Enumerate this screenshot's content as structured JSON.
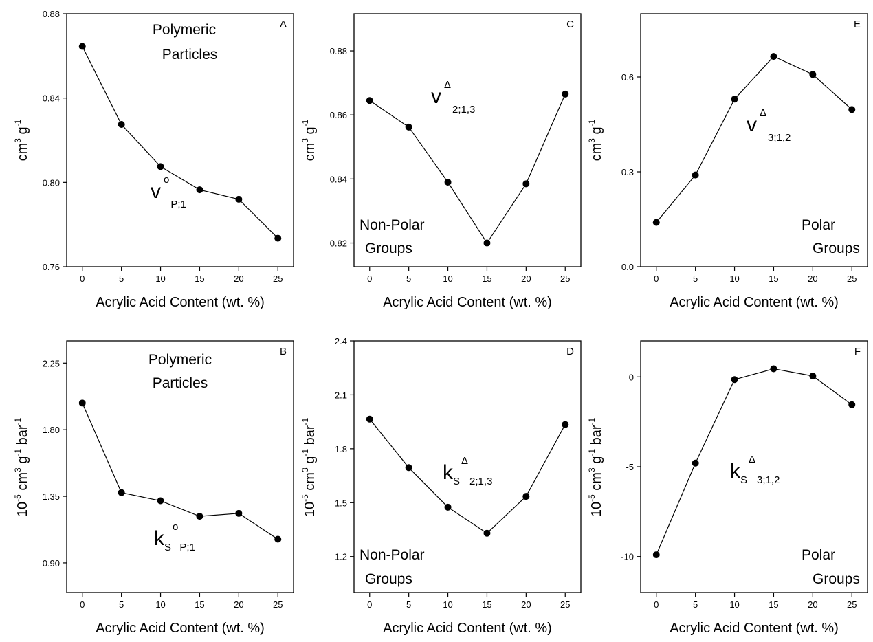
{
  "figure": {
    "colors": {
      "line": "#000000",
      "marker": "#000000",
      "background": "#ffffff"
    },
    "marker": "filled-circle"
  },
  "chart_data": [
    {
      "panel": "A",
      "type": "line",
      "x": [
        0,
        5,
        10,
        15,
        20,
        25
      ],
      "values": [
        0.8645,
        0.8275,
        0.8075,
        0.7965,
        0.792,
        0.7735
      ],
      "xlabel": "Acrylic Acid Content  (wt. %)",
      "xlim": [
        -2,
        27
      ],
      "ylim": [
        0.76,
        0.88
      ],
      "xticks": [
        0,
        5,
        10,
        15,
        20,
        25
      ],
      "yticks": [
        0.76,
        0.8,
        0.84,
        0.88
      ],
      "ytick_labels": [
        "0.76",
        "0.80",
        "0.84",
        "0.88"
      ],
      "ylabel": {
        "unit1": "cm",
        "exp1": "3",
        "unit2": "g",
        "exp2": "-1"
      },
      "annotations": [
        "Polymeric",
        "Particles"
      ],
      "symbol": {
        "base": "v",
        "sup": "o",
        "sub": "P;1"
      }
    },
    {
      "panel": "B",
      "type": "line",
      "x": [
        0,
        5,
        10,
        15,
        20,
        25
      ],
      "values": [
        1.98,
        1.375,
        1.32,
        1.215,
        1.235,
        1.06
      ],
      "xlabel": "Acrylic Acid Content  (wt. %)",
      "xlim": [
        -2,
        27
      ],
      "ylim": [
        0.7,
        2.4
      ],
      "xticks": [
        0,
        5,
        10,
        15,
        20,
        25
      ],
      "yticks": [
        0.9,
        1.35,
        1.8,
        2.25
      ],
      "ytick_labels": [
        "0.90",
        "1.35",
        "1.80",
        "2.25"
      ],
      "ylabel": {
        "prefix": "10",
        "prefix_exp": "-5",
        "unit1": "cm",
        "exp1": "3",
        "unit2": "g",
        "exp2": "-1",
        "unit3": "bar",
        "exp3": "-1"
      },
      "annotations": [
        "Polymeric",
        "Particles"
      ],
      "symbol": {
        "base": "k",
        "base_sub": "S",
        "sup": "o",
        "sub": "P;1"
      }
    },
    {
      "panel": "C",
      "type": "line",
      "x": [
        0,
        5,
        10,
        15,
        20,
        25
      ],
      "values": [
        0.8645,
        0.8562,
        0.839,
        0.82,
        0.8385,
        0.8665
      ],
      "xlabel": "Acrylic Acid Content  (wt. %)",
      "xlim": [
        -2,
        27
      ],
      "ylim": [
        0.8126,
        0.8916
      ],
      "xticks": [
        0,
        5,
        10,
        15,
        20,
        25
      ],
      "yticks": [
        0.82,
        0.84,
        0.86,
        0.88
      ],
      "ytick_labels": [
        "0.82",
        "0.84",
        "0.86",
        "0.88"
      ],
      "ylabel": {
        "unit1": "cm",
        "exp1": "3",
        "unit2": "g",
        "exp2": "-1"
      },
      "annotations": [
        "Non-Polar",
        "Groups"
      ],
      "symbol": {
        "base": "v",
        "sup": "Δ",
        "sub": "2;1,3"
      }
    },
    {
      "panel": "D",
      "type": "line",
      "x": [
        0,
        5,
        10,
        15,
        20,
        25
      ],
      "values": [
        1.965,
        1.695,
        1.475,
        1.33,
        1.535,
        1.935
      ],
      "xlabel": "Acrylic Acid Content  (wt. %)",
      "xlim": [
        -2,
        27
      ],
      "ylim": [
        1.0,
        2.4
      ],
      "xticks": [
        0,
        5,
        10,
        15,
        20,
        25
      ],
      "yticks": [
        1.2,
        1.5,
        1.8,
        2.1,
        2.4
      ],
      "ytick_labels": [
        "1.2",
        "1.5",
        "1.8",
        "2.1",
        "2.4"
      ],
      "ylabel": {
        "prefix": "10",
        "prefix_exp": "-5",
        "unit1": "cm",
        "exp1": "3",
        "unit2": "g",
        "exp2": "-1",
        "unit3": "bar",
        "exp3": "-1"
      },
      "annotations": [
        "Non-Polar",
        "Groups"
      ],
      "symbol": {
        "base": "k",
        "base_sub": "S",
        "sup": "Δ",
        "sub": "2;1,3"
      }
    },
    {
      "panel": "E",
      "type": "line",
      "x": [
        0,
        5,
        10,
        15,
        20,
        25
      ],
      "values": [
        0.14,
        0.29,
        0.53,
        0.665,
        0.608,
        0.497
      ],
      "xlabel": "Acrylic Acid Content  (wt. %)",
      "xlim": [
        -2,
        27
      ],
      "ylim": [
        0.0,
        0.8
      ],
      "xticks": [
        0,
        5,
        10,
        15,
        20,
        25
      ],
      "yticks": [
        0.0,
        0.3,
        0.6
      ],
      "ytick_labels": [
        "0.0",
        "0.3",
        "0.6"
      ],
      "ylabel": {
        "unit1": "cm",
        "exp1": "3",
        "unit2": "g",
        "exp2": "-1"
      },
      "annotations": [
        "Polar",
        "Groups"
      ],
      "symbol": {
        "base": "v",
        "sup": "Δ",
        "sub": "3;1,2"
      }
    },
    {
      "panel": "F",
      "type": "line",
      "x": [
        0,
        5,
        10,
        15,
        20,
        25
      ],
      "values": [
        -9.9,
        -4.8,
        -0.15,
        0.45,
        0.05,
        -1.55
      ],
      "xlabel": "Acrylic Acid Content  (wt. %)",
      "xlim": [
        -2,
        27
      ],
      "ylim": [
        -12,
        2
      ],
      "xticks": [
        0,
        5,
        10,
        15,
        20,
        25
      ],
      "yticks": [
        -10,
        -5,
        0
      ],
      "ytick_labels": [
        "-10",
        "-5",
        "0"
      ],
      "ylabel": {
        "prefix": "10",
        "prefix_exp": "-5",
        "unit1": "cm",
        "exp1": "3",
        "unit2": "g",
        "exp2": "-1",
        "unit3": "bar",
        "exp3": "-1"
      },
      "annotations": [
        "Polar",
        "Groups"
      ],
      "symbol": {
        "base": "k",
        "base_sub": "S",
        "sup": "Δ",
        "sub": "3;1,2"
      }
    }
  ]
}
